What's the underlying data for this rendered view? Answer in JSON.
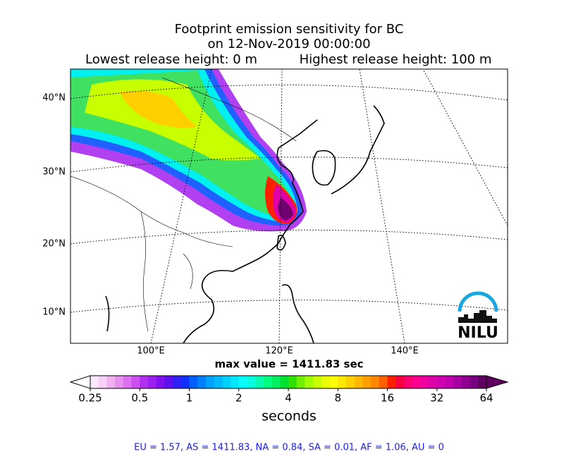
{
  "title": [
    "Footprint emission sensitivity for BC",
    "on 12-Nov-2019 00:00:00"
  ],
  "release": {
    "lowest": "Lowest release height: 0 m",
    "highest": "Highest release height: 100 m"
  },
  "map": {
    "lat_labels": [
      "40°N",
      "30°N",
      "20°N",
      "10°N"
    ],
    "lon_labels": [
      "100°E",
      "120°E",
      "140°E"
    ],
    "logo": "NILU"
  },
  "max_label": "max value = 1411.83 sec",
  "colorbar": {
    "log_scale": true,
    "ticks": [
      0.25,
      0.5,
      1,
      2,
      4,
      8,
      16,
      32,
      64
    ],
    "label": "seconds",
    "colors": [
      "#fde8fd",
      "#f8d0f8",
      "#f0b0f0",
      "#e890f0",
      "#dc70f0",
      "#cc50f0",
      "#b030f0",
      "#9a20f0",
      "#8010f0",
      "#6010f0",
      "#3020f8",
      "#1030ff",
      "#0060ff",
      "#0080ff",
      "#00a0ff",
      "#00b8ff",
      "#00d0ff",
      "#00e8ff",
      "#00ffff",
      "#00ffe0",
      "#00ffb0",
      "#00ff80",
      "#00f060",
      "#00e030",
      "#30e000",
      "#70f000",
      "#a0ff00",
      "#c8ff00",
      "#e8ff00",
      "#ffff00",
      "#ffe800",
      "#ffd000",
      "#ffb800",
      "#ffa000",
      "#ff8800",
      "#ff6000",
      "#ff2000",
      "#ff0040",
      "#ff0070",
      "#ff0090",
      "#f000a0",
      "#e000a8",
      "#d000b0",
      "#c000b0",
      "#a800a0",
      "#900090",
      "#780080",
      "#600060"
    ]
  },
  "footer": "EU = 1.57,  AS = 1411.83,  NA = 0.84,  SA = 0.01,  AF = 1.06,  AU = 0"
}
